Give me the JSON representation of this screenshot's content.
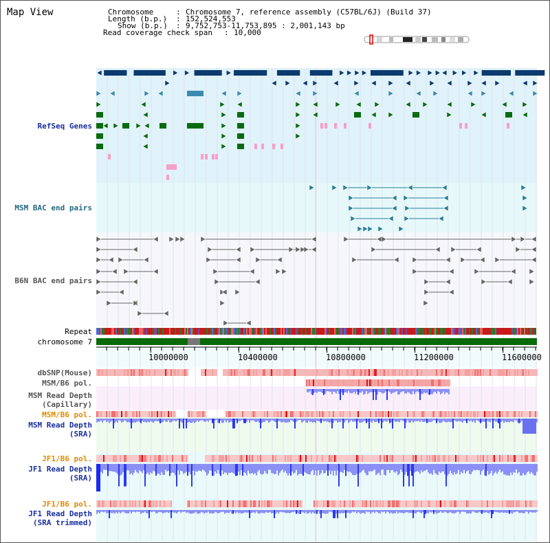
{
  "page": {
    "title": "Map View"
  },
  "header": {
    "rows": [
      {
        "key": "Chromosome",
        "value": "Chromosome 7, reference assembly (C57BL/6J) (Build 37)"
      },
      {
        "key": "Length (b.p.)",
        "value": "152,524,553"
      },
      {
        "key": "Show (b.p.)",
        "value": "9,752,753-11,753,895 : 2,001,143 bp"
      },
      {
        "key": "Read coverage check span",
        "value": "10,000"
      }
    ]
  },
  "tracks": {
    "refseq_genes": "RefSeq Genes",
    "msm_bac": "MSM BAC end pairs",
    "b6n_bac": "B6N BAC end pairs",
    "repeat": "Repeat",
    "chromosome": "chromosome 7",
    "dbsnp": "dbSNP(Mouse)",
    "msm_b6_pol_1": "MSM/B6 pol.",
    "msm_depth_cap_1": "MSM Read Depth",
    "msm_depth_cap_2": "(Capillary)",
    "msm_b6_pol_2": "MSM/B6 pol.",
    "msm_depth_sra_1": "MSM Read Depth",
    "msm_depth_sra_2": "(SRA)",
    "jf1_b6_pol_1": "JF1/B6 pol.",
    "jf1_depth_sra_1": "JF1 Read Depth",
    "jf1_depth_sra_2": "(SRA)",
    "jf1_b6_pol_2": "JF1/B6 pol.",
    "jf1_depth_trim_1": "JF1 Read Depth",
    "jf1_depth_trim_2": "(SRA trimmed)"
  },
  "axis": {
    "ticks": [
      "10000000",
      "10400000",
      "10800000",
      "11200000",
      "11600000"
    ],
    "tick_values": [
      10000000,
      10400000,
      10800000,
      11200000,
      11600000
    ],
    "range": [
      9752753,
      11753895
    ]
  },
  "colors": {
    "refseq_bg": "#e0f2fa",
    "msm_bac_bg": "#e6f8fa",
    "b6n_bg": "#f6f6fb",
    "gene_navy": "#0b3a6e",
    "gene_blue": "#3a8ab0",
    "gene_green": "#0a6a10",
    "gene_pink": "#f7a0c8",
    "chrom_green": "#0a6a0a",
    "depth_blue": "#3040f0",
    "pol_red": "#f03030",
    "snp_pink": "#f5b5b5"
  }
}
